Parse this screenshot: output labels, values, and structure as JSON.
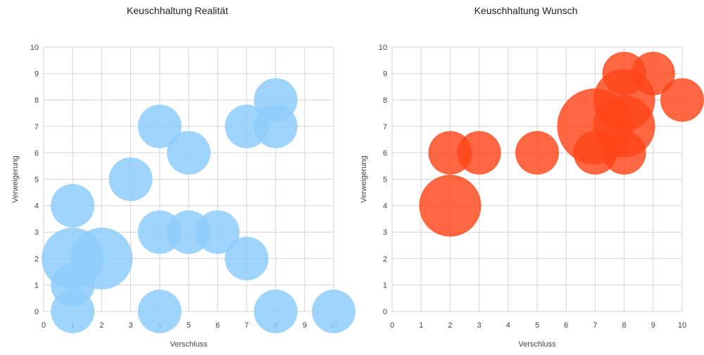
{
  "chart_data": [
    {
      "type": "scatter",
      "title": "Keuschhaltung Realität",
      "xlabel": "Verschluss",
      "ylabel": "Verweigerung",
      "xlim": [
        0,
        10
      ],
      "ylim": [
        0,
        10
      ],
      "grid": true,
      "xticks": [
        "0",
        "1",
        "2",
        "3",
        "4",
        "5",
        "6",
        "7",
        "8",
        "9",
        "10"
      ],
      "yticks": [
        "0",
        "1",
        "2",
        "3",
        "4",
        "5",
        "6",
        "7",
        "8",
        "9",
        "10"
      ],
      "color": "#8ecdfb",
      "points": [
        {
          "x": 1,
          "y": 0,
          "size": 1
        },
        {
          "x": 1,
          "y": 1,
          "size": 1
        },
        {
          "x": 1,
          "y": 2,
          "size": 2
        },
        {
          "x": 1,
          "y": 4,
          "size": 1
        },
        {
          "x": 2,
          "y": 2,
          "size": 2
        },
        {
          "x": 3,
          "y": 5,
          "size": 1
        },
        {
          "x": 4,
          "y": 0,
          "size": 1
        },
        {
          "x": 4,
          "y": 3,
          "size": 1
        },
        {
          "x": 4,
          "y": 7,
          "size": 1
        },
        {
          "x": 5,
          "y": 3,
          "size": 1
        },
        {
          "x": 5,
          "y": 6,
          "size": 1
        },
        {
          "x": 6,
          "y": 3,
          "size": 1
        },
        {
          "x": 7,
          "y": 2,
          "size": 1
        },
        {
          "x": 7,
          "y": 7,
          "size": 1
        },
        {
          "x": 8,
          "y": 0,
          "size": 1
        },
        {
          "x": 8,
          "y": 7,
          "size": 1
        },
        {
          "x": 8,
          "y": 8,
          "size": 1
        },
        {
          "x": 10,
          "y": 0,
          "size": 1
        }
      ]
    },
    {
      "type": "scatter",
      "title": "Keuschhaltung Wunsch",
      "xlabel": "Verschluss",
      "ylabel": "Verweigerung",
      "xlim": [
        0,
        10
      ],
      "ylim": [
        0,
        10
      ],
      "grid": true,
      "xticks": [
        "0",
        "1",
        "2",
        "3",
        "4",
        "5",
        "6",
        "7",
        "8",
        "9",
        "10"
      ],
      "yticks": [
        "0",
        "1",
        "2",
        "3",
        "4",
        "5",
        "6",
        "7",
        "8",
        "9",
        "10"
      ],
      "color": "#ff4619",
      "points": [
        {
          "x": 2,
          "y": 4,
          "size": 2
        },
        {
          "x": 2,
          "y": 6,
          "size": 1
        },
        {
          "x": 3,
          "y": 6,
          "size": 1
        },
        {
          "x": 5,
          "y": 6,
          "size": 1
        },
        {
          "x": 7,
          "y": 6,
          "size": 1
        },
        {
          "x": 7,
          "y": 7,
          "size": 3
        },
        {
          "x": 8,
          "y": 6,
          "size": 1
        },
        {
          "x": 8,
          "y": 7,
          "size": 2
        },
        {
          "x": 8,
          "y": 8,
          "size": 2
        },
        {
          "x": 8,
          "y": 9,
          "size": 1
        },
        {
          "x": 9,
          "y": 9,
          "size": 1
        },
        {
          "x": 10,
          "y": 8,
          "size": 1
        }
      ]
    }
  ]
}
